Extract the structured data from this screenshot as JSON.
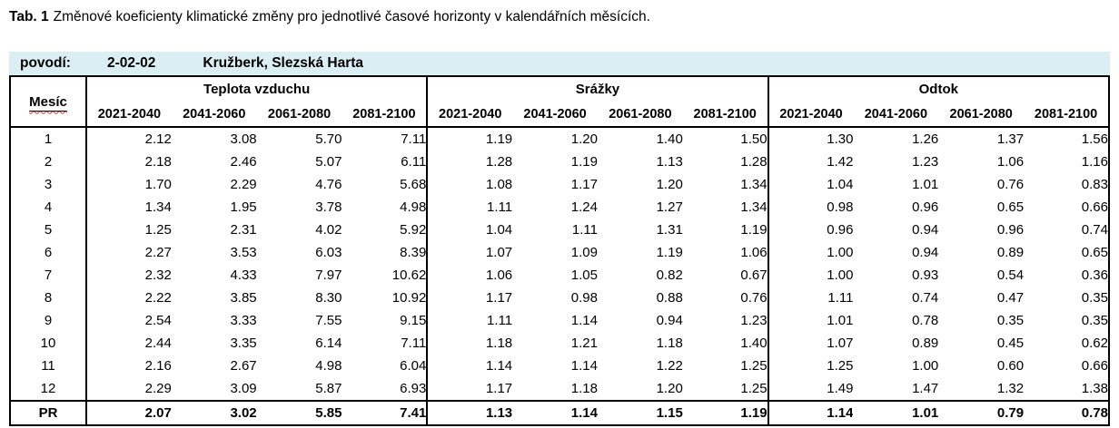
{
  "caption": {
    "label": "Tab. 1",
    "text": "Změnové koeficienty klimatické změny pro jednotlivé časové horizonty v kalendářních měsících."
  },
  "basin": {
    "label": "povodí:",
    "code": "2-02-02",
    "name": "Kružberk, Slezská Harta"
  },
  "colors": {
    "band_fill": "#daeef3",
    "border": "#000000",
    "spellcheck_underline": "#e03030"
  },
  "table": {
    "month_header": "Mesíc",
    "groups": [
      {
        "label": "Teplota vzduchu",
        "columns": [
          "2021-2040",
          "2041-2060",
          "2061-2080",
          "2081-2100"
        ]
      },
      {
        "label": "Srážky",
        "columns": [
          "2021-2040",
          "2041-2060",
          "2061-2080",
          "2081-2100"
        ]
      },
      {
        "label": "Odtok",
        "columns": [
          "2021-2040",
          "2041-2060",
          "2061-2080",
          "2081-2100"
        ]
      }
    ],
    "rows": [
      {
        "month": "1",
        "values": [
          [
            "2.12",
            "3.08",
            "5.70",
            "7.11"
          ],
          [
            "1.19",
            "1.20",
            "1.40",
            "1.50"
          ],
          [
            "1.30",
            "1.26",
            "1.37",
            "1.56"
          ]
        ]
      },
      {
        "month": "2",
        "values": [
          [
            "2.18",
            "2.46",
            "5.07",
            "6.11"
          ],
          [
            "1.28",
            "1.19",
            "1.13",
            "1.28"
          ],
          [
            "1.42",
            "1.23",
            "1.06",
            "1.16"
          ]
        ]
      },
      {
        "month": "3",
        "values": [
          [
            "1.70",
            "2.29",
            "4.76",
            "5.68"
          ],
          [
            "1.08",
            "1.17",
            "1.20",
            "1.34"
          ],
          [
            "1.04",
            "1.01",
            "0.76",
            "0.83"
          ]
        ]
      },
      {
        "month": "4",
        "values": [
          [
            "1.34",
            "1.95",
            "3.78",
            "4.98"
          ],
          [
            "1.11",
            "1.24",
            "1.27",
            "1.34"
          ],
          [
            "0.98",
            "0.96",
            "0.65",
            "0.66"
          ]
        ]
      },
      {
        "month": "5",
        "values": [
          [
            "1.25",
            "2.31",
            "4.02",
            "5.92"
          ],
          [
            "1.04",
            "1.11",
            "1.31",
            "1.19"
          ],
          [
            "0.96",
            "0.94",
            "0.96",
            "0.74"
          ]
        ]
      },
      {
        "month": "6",
        "values": [
          [
            "2.27",
            "3.53",
            "6.03",
            "8.39"
          ],
          [
            "1.07",
            "1.09",
            "1.19",
            "1.06"
          ],
          [
            "1.00",
            "0.94",
            "0.89",
            "0.65"
          ]
        ]
      },
      {
        "month": "7",
        "values": [
          [
            "2.32",
            "4.33",
            "7.97",
            "10.62"
          ],
          [
            "1.06",
            "1.05",
            "0.82",
            "0.67"
          ],
          [
            "1.00",
            "0.93",
            "0.54",
            "0.36"
          ]
        ]
      },
      {
        "month": "8",
        "values": [
          [
            "2.22",
            "3.85",
            "8.30",
            "10.92"
          ],
          [
            "1.17",
            "0.98",
            "0.88",
            "0.76"
          ],
          [
            "1.11",
            "0.74",
            "0.47",
            "0.35"
          ]
        ]
      },
      {
        "month": "9",
        "values": [
          [
            "2.54",
            "3.33",
            "7.55",
            "9.15"
          ],
          [
            "1.11",
            "1.14",
            "0.94",
            "1.23"
          ],
          [
            "1.01",
            "0.78",
            "0.35",
            "0.35"
          ]
        ]
      },
      {
        "month": "10",
        "values": [
          [
            "2.44",
            "3.35",
            "6.14",
            "7.11"
          ],
          [
            "1.18",
            "1.21",
            "1.18",
            "1.40"
          ],
          [
            "1.07",
            "0.89",
            "0.45",
            "0.62"
          ]
        ]
      },
      {
        "month": "11",
        "values": [
          [
            "2.16",
            "2.67",
            "4.98",
            "6.04"
          ],
          [
            "1.14",
            "1.14",
            "1.22",
            "1.25"
          ],
          [
            "1.25",
            "1.00",
            "0.60",
            "0.66"
          ]
        ]
      },
      {
        "month": "12",
        "values": [
          [
            "2.29",
            "3.09",
            "5.87",
            "6.93"
          ],
          [
            "1.17",
            "1.18",
            "1.20",
            "1.25"
          ],
          [
            "1.49",
            "1.47",
            "1.32",
            "1.38"
          ]
        ]
      }
    ],
    "summary": {
      "month": "PR",
      "values": [
        [
          "2.07",
          "3.02",
          "5.85",
          "7.41"
        ],
        [
          "1.13",
          "1.14",
          "1.15",
          "1.19"
        ],
        [
          "1.14",
          "1.01",
          "0.79",
          "0.78"
        ]
      ]
    }
  }
}
